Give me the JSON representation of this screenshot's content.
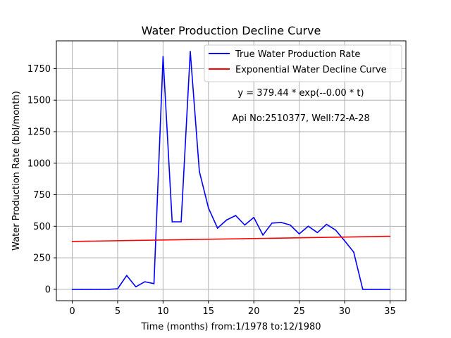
{
  "chart_data": {
    "type": "line",
    "title": "Water Production Decline Curve",
    "xlabel": "Time (months) from:1/1978 to:12/1980",
    "ylabel": "Water Production Rate (bbl/month)",
    "xlim": [
      -1.75,
      36.75
    ],
    "ylim": [
      -90,
      1970
    ],
    "xticks": [
      0,
      5,
      10,
      15,
      20,
      25,
      30,
      35
    ],
    "yticks": [
      0,
      250,
      500,
      750,
      1000,
      1250,
      1500,
      1750
    ],
    "grid": true,
    "legend_position": "top-right",
    "series": [
      {
        "name": "True Water Production Rate",
        "color": "#0000ff",
        "x": [
          0,
          1,
          2,
          3,
          4,
          5,
          6,
          7,
          8,
          9,
          10,
          11,
          12,
          13,
          14,
          15,
          16,
          17,
          18,
          19,
          20,
          21,
          22,
          23,
          24,
          25,
          26,
          27,
          28,
          29,
          30,
          31,
          32,
          33,
          34,
          35
        ],
        "y": [
          0,
          0,
          0,
          0,
          0,
          5,
          110,
          20,
          60,
          45,
          1845,
          535,
          535,
          1885,
          935,
          645,
          485,
          550,
          585,
          510,
          570,
          430,
          525,
          530,
          510,
          440,
          500,
          450,
          515,
          470,
          385,
          295,
          0,
          0,
          0,
          0
        ]
      },
      {
        "name": "Exponential Water Decline Curve",
        "color": "#ff0000",
        "x": [
          0,
          35
        ],
        "y": [
          379.44,
          420
        ]
      }
    ],
    "annotations": [
      "y = 379.44 * exp(--0.00 * t)",
      "Api No:2510377, Well:72-A-28"
    ]
  }
}
